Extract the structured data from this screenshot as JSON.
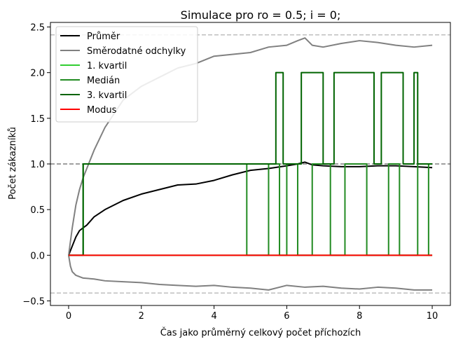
{
  "chart_data": {
    "type": "line",
    "title": "Simulace pro ro = 0.5; i = 0;",
    "xlabel": "Čas jako průměrný celkový počet příchozích",
    "ylabel": "Počet zákazníků",
    "xlim": [
      -0.5,
      10.5
    ],
    "ylim": [
      -0.55,
      2.55
    ],
    "xticks": [
      0,
      2,
      4,
      6,
      8,
      10
    ],
    "xtick_labels": [
      "0",
      "2",
      "4",
      "6",
      "8",
      "10"
    ],
    "yticks": [
      -0.5,
      0.0,
      0.5,
      1.0,
      1.5,
      2.0,
      2.5
    ],
    "ytick_labels": [
      "−0.5",
      "0.0",
      "0.5",
      "1.0",
      "1.5",
      "2.0",
      "2.5"
    ],
    "grid": false,
    "legend_position": "top-left",
    "reference_lines": [
      {
        "y": 1.0,
        "color": "#808080",
        "style": "dashed"
      },
      {
        "y": 2.414,
        "color": "#bfbfbf",
        "style": "dashed"
      },
      {
        "y": -0.414,
        "color": "#bfbfbf",
        "style": "dashed"
      }
    ],
    "series": [
      {
        "name": "Průměr",
        "color": "#000000",
        "x": [
          0,
          0.1,
          0.2,
          0.3,
          0.4,
          0.5,
          0.7,
          1.0,
          1.5,
          2.0,
          2.5,
          3.0,
          3.5,
          4.0,
          4.5,
          5.0,
          5.5,
          6.0,
          6.3,
          6.5,
          6.7,
          7.0,
          7.5,
          8.0,
          8.5,
          9.0,
          9.5,
          10.0
        ],
        "y": [
          0.0,
          0.1,
          0.2,
          0.27,
          0.3,
          0.33,
          0.42,
          0.5,
          0.6,
          0.67,
          0.72,
          0.77,
          0.78,
          0.82,
          0.88,
          0.93,
          0.95,
          0.98,
          1.0,
          1.02,
          0.99,
          0.98,
          0.97,
          0.97,
          0.98,
          0.98,
          0.97,
          0.96
        ]
      },
      {
        "name": "Směrodatné odchylky",
        "color": "#808080",
        "x": [
          0,
          0.05,
          0.1,
          0.2,
          0.3,
          0.4,
          0.5,
          0.7,
          1.0,
          1.5,
          2.0,
          2.5,
          3.0,
          3.5,
          4.0,
          4.5,
          5.0,
          5.5,
          6.0,
          6.3,
          6.5,
          6.7,
          7.0,
          7.5,
          8.0,
          8.5,
          9.0,
          9.5,
          10.0
        ],
        "y": [
          0.0,
          0.15,
          0.3,
          0.55,
          0.72,
          0.85,
          0.95,
          1.15,
          1.4,
          1.7,
          1.85,
          1.95,
          2.05,
          2.1,
          2.18,
          2.2,
          2.22,
          2.28,
          2.3,
          2.35,
          2.38,
          2.3,
          2.28,
          2.32,
          2.35,
          2.33,
          2.3,
          2.28,
          2.3
        ]
      },
      {
        "name": "",
        "color": "#808080",
        "x": [
          0,
          0.05,
          0.1,
          0.2,
          0.4,
          0.7,
          1.0,
          1.5,
          2.0,
          2.5,
          3.0,
          3.5,
          4.0,
          4.5,
          5.0,
          5.5,
          6.0,
          6.5,
          7.0,
          7.5,
          8.0,
          8.5,
          9.0,
          9.5,
          10.0
        ],
        "y": [
          0.0,
          -0.12,
          -0.18,
          -0.22,
          -0.25,
          -0.26,
          -0.28,
          -0.29,
          -0.3,
          -0.32,
          -0.33,
          -0.34,
          -0.33,
          -0.35,
          -0.36,
          -0.38,
          -0.33,
          -0.35,
          -0.34,
          -0.36,
          -0.37,
          -0.35,
          -0.36,
          -0.38,
          -0.38
        ]
      },
      {
        "name": "1. kvartil",
        "color": "#32cd32",
        "x": [
          0,
          10
        ],
        "y": [
          0.0,
          0.0
        ]
      },
      {
        "name": "Medián",
        "color": "#228b22",
        "step_segments": [
          [
            0.0,
            0.4,
            0
          ],
          [
            0.4,
            4.9,
            1
          ],
          [
            4.9,
            5.5,
            0
          ],
          [
            5.5,
            5.8,
            1
          ],
          [
            5.8,
            6.0,
            0
          ],
          [
            6.0,
            6.3,
            1
          ],
          [
            6.3,
            6.7,
            0
          ],
          [
            6.7,
            7.2,
            1
          ],
          [
            7.2,
            7.6,
            0
          ],
          [
            7.6,
            8.2,
            1
          ],
          [
            8.2,
            8.8,
            0
          ],
          [
            8.8,
            9.1,
            1
          ],
          [
            9.1,
            9.6,
            0
          ],
          [
            9.6,
            9.9,
            1
          ],
          [
            9.9,
            10.0,
            0
          ]
        ]
      },
      {
        "name": "3. kvartil",
        "color": "#006400",
        "step_segments": [
          [
            0.0,
            0.4,
            0
          ],
          [
            0.4,
            5.7,
            1
          ],
          [
            5.7,
            5.9,
            2
          ],
          [
            5.9,
            6.4,
            1
          ],
          [
            6.4,
            7.0,
            2
          ],
          [
            7.0,
            7.3,
            1
          ],
          [
            7.3,
            8.4,
            2
          ],
          [
            8.4,
            8.6,
            1
          ],
          [
            8.6,
            9.2,
            2
          ],
          [
            9.2,
            9.5,
            1
          ],
          [
            9.5,
            9.6,
            2
          ],
          [
            9.6,
            10.0,
            1
          ]
        ]
      },
      {
        "name": "Modus",
        "color": "#ff0000",
        "x": [
          0,
          10
        ],
        "y": [
          0.0,
          0.0
        ]
      }
    ]
  }
}
